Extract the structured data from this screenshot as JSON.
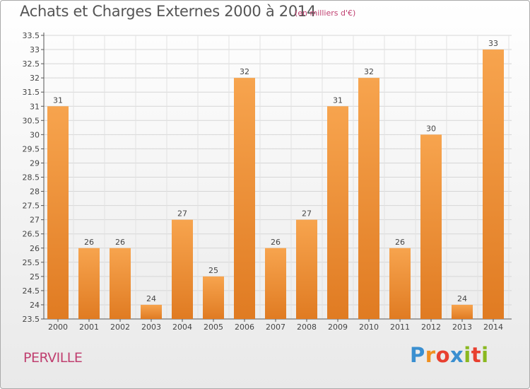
{
  "header": {
    "title": "Achats et Charges Externes 2000 à 2014",
    "subtitle": "(en milliers d'€)"
  },
  "footer": {
    "place": "PERVILLE",
    "logo": {
      "p": "P",
      "r": "r",
      "o": "o",
      "x": "x",
      "i1": "i",
      "t": "t",
      "i2": "i"
    }
  },
  "colors": {
    "bar_light": "#f7a44e",
    "bar_dark": "#e07b22",
    "accent": "#c04070"
  },
  "chart_data": {
    "type": "bar",
    "title": "Achats et Charges Externes 2000 à 2014",
    "subtitle": "(en milliers d'€)",
    "xlabel": "",
    "ylabel": "",
    "categories": [
      "2000",
      "2001",
      "2002",
      "2003",
      "2004",
      "2005",
      "2006",
      "2007",
      "2008",
      "2009",
      "2010",
      "2011",
      "2012",
      "2013",
      "2014"
    ],
    "values": [
      31,
      26,
      26,
      24,
      27,
      25,
      32,
      26,
      27,
      31,
      32,
      26,
      30,
      24,
      33
    ],
    "ylim": [
      23.5,
      33.5
    ],
    "yticks": [
      "23.5",
      "24",
      "24.5",
      "25",
      "25.5",
      "26",
      "26.5",
      "27",
      "27.5",
      "28",
      "28.5",
      "29",
      "29.5",
      "30",
      "30.5",
      "31",
      "31.5",
      "32",
      "32.5",
      "33",
      "33.5"
    ],
    "grid": true,
    "legend": "none"
  }
}
